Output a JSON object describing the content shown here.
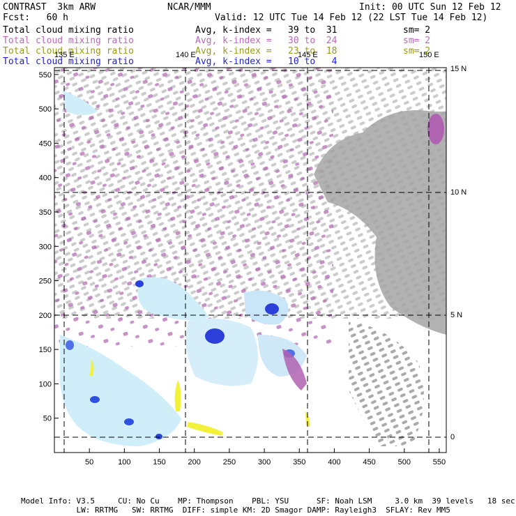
{
  "header": {
    "program": "CONTRAST  3km ARW",
    "center": "NCAR/MMM",
    "init": "Init: 00 UTC Sun 12 Feb 12",
    "fcst": "Fcst:   60 h",
    "valid": "Valid: 12 UTC Tue 14 Feb 12 (22 LST Tue 14 Feb 12)"
  },
  "fields": [
    {
      "name": "Total cloud mixing ratio",
      "range": "Avg, k-index =   39 to  31",
      "smooth": "sm= 2",
      "color": "#000000"
    },
    {
      "name": "Total cloud mixing ratio",
      "range": "Avg, k-index =   30 to  24",
      "smooth": "sm= 2",
      "color": "#b86ab8"
    },
    {
      "name": "Total cloud mixing ratio",
      "range": "Avg, k-index =   23 to  18",
      "smooth": "sm= 2",
      "color": "#9a9a18"
    },
    {
      "name": "Total cloud mixing ratio",
      "range": "Avg, k-index =   10 to   4",
      "smooth": "",
      "color": "#1f1fd8"
    }
  ],
  "map": {
    "lon_labels": [
      "135 E",
      "140 E",
      "145 E",
      "150 E"
    ],
    "lat_labels": [
      "15 N",
      "10 N",
      "5 N",
      "0"
    ],
    "x_ticks": [
      50,
      100,
      150,
      200,
      250,
      300,
      350,
      400,
      450,
      500,
      550
    ],
    "y_ticks": [
      50,
      100,
      150,
      200,
      250,
      300,
      350,
      400,
      450,
      500,
      550
    ],
    "colors": {
      "gray": "#9c9c9c",
      "purple": "#b063b0",
      "yellow": "#f2f23a",
      "light_blue": "#cfeefa",
      "blue": "#2040e0"
    }
  },
  "footer": {
    "line1": "Model Info: V3.5     CU: No Cu    MP: Thompson    PBL: YSU      SF: Noah LSM     3.0 km  39 levels   18 sec",
    "line2": "            LW: RRTMG   SW: RRTMG  DIFF: simple KM: 2D Smagor DAMP: Rayleigh3  SFLAY: Rev MM5"
  }
}
